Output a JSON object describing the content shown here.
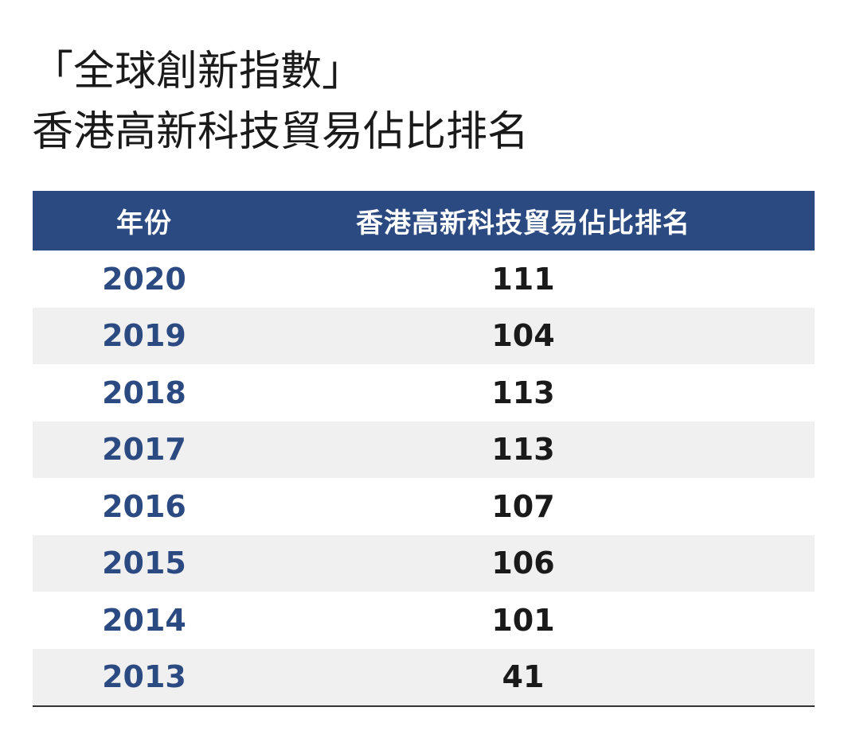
{
  "title": {
    "line1": "「全球創新指數」",
    "line2": "香港高新科技貿易佔比排名"
  },
  "table": {
    "headers": [
      "年份",
      "香港高新科技貿易佔比排名"
    ],
    "rows": [
      {
        "year": "2020",
        "rank": "111"
      },
      {
        "year": "2019",
        "rank": "104"
      },
      {
        "year": "2018",
        "rank": "113"
      },
      {
        "year": "2017",
        "rank": "113"
      },
      {
        "year": "2016",
        "rank": "107"
      },
      {
        "year": "2015",
        "rank": "106"
      },
      {
        "year": "2014",
        "rank": "101"
      },
      {
        "year": "2013",
        "rank": "41"
      }
    ]
  },
  "colors": {
    "header_bg": "#2c4a82",
    "year_text": "#2c4a82",
    "stripe": "#f0f0f0"
  }
}
